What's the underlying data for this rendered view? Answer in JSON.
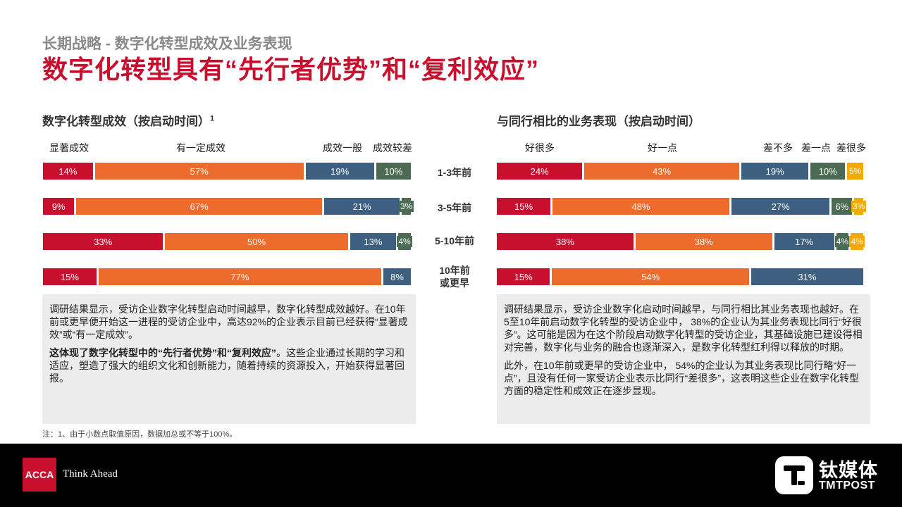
{
  "header": {
    "supertitle": "长期战略 - 数字化转型成效及业务表现",
    "title": "数字化转型具有“先行者优势”和“复利效应”"
  },
  "colors": {
    "red": "#c8102e",
    "orange": "#ec6b2d",
    "blue": "#3d5f80",
    "green": "#4c6b55",
    "yellow": "#f2a900",
    "textbox_bg": "#ececec"
  },
  "row_labels": [
    {
      "text": "1-3年前"
    },
    {
      "text": "3-5年前"
    },
    {
      "text": "5-10年前"
    },
    {
      "text": "10年前\n或更早"
    }
  ],
  "chart_data": [
    {
      "type": "bar",
      "stacked": true,
      "orientation": "horizontal",
      "title": "数字化转型成效（按启动时间）",
      "title_sup": "1",
      "categories": [
        "1-3年前",
        "3-5年前",
        "5-10年前",
        "10年前或更早"
      ],
      "series": [
        {
          "name": "显著成效",
          "color": "#c8102e",
          "values": [
            14,
            9,
            33,
            15
          ]
        },
        {
          "name": "有一定成效",
          "color": "#ec6b2d",
          "values": [
            57,
            67,
            50,
            77
          ]
        },
        {
          "name": "成效一般",
          "color": "#3d5f80",
          "values": [
            19,
            21,
            13,
            8
          ]
        },
        {
          "name": "成效较差",
          "color": "#4c6b55",
          "values": [
            10,
            3,
            4,
            0
          ]
        }
      ],
      "labels": [
        [
          "14%",
          "57%",
          "19%",
          "10%"
        ],
        [
          "9%",
          "67%",
          "21%",
          "3%"
        ],
        [
          "33%",
          "50%",
          "13%",
          "4%"
        ],
        [
          "15%",
          "77%",
          "8%",
          ""
        ]
      ]
    },
    {
      "type": "bar",
      "stacked": true,
      "orientation": "horizontal",
      "title": "与同行相比的业务表现（按启动时间）",
      "categories": [
        "1-3年前",
        "3-5年前",
        "5-10年前",
        "10年前或更早"
      ],
      "series": [
        {
          "name": "好很多",
          "color": "#c8102e",
          "values": [
            24,
            15,
            38,
            15
          ]
        },
        {
          "name": "好一点",
          "color": "#ec6b2d",
          "values": [
            43,
            48,
            38,
            54
          ]
        },
        {
          "name": "差不多",
          "color": "#3d5f80",
          "values": [
            19,
            27,
            17,
            31
          ]
        },
        {
          "name": "差一点",
          "color": "#4c6b55",
          "values": [
            10,
            6,
            4,
            0
          ]
        },
        {
          "name": "差很多",
          "color": "#f2a900",
          "values": [
            5,
            3,
            4,
            0
          ]
        }
      ],
      "labels": [
        [
          "24%",
          "43%",
          "19%",
          "10%",
          "5%"
        ],
        [
          "15%",
          "48%",
          "27%",
          "6%",
          "3%"
        ],
        [
          "38%",
          "38%",
          "17%",
          "4%",
          "4%"
        ],
        [
          "15%",
          "54%",
          "31%",
          "",
          ""
        ]
      ]
    }
  ],
  "left_text": {
    "p1": "调研结果显示，受访企业数字化转型启动时间越早，数字化转型成效越好。在10年前或更早便开始这一进程的受访企业中，高达92%的企业表示目前已经获得“显著成效”或“有一定成效”。",
    "p2_bold": "这体现了数字化转型中的“先行者优势”和“复利效应”",
    "p2_rest": "。这些企业通过长期的学习和适应，塑造了强大的组织文化和创新能力，随着持续的资源投入，开始获得显著回报。"
  },
  "right_text": {
    "p1": "调研结果显示，受访企业数字化启动时间越早，与同行相比其业务表现也越好。在5至10年前启动数字化转型的受访企业中， 38%的企业认为其业务表现比同行“好很多”。这可能是因为在这个阶段启动数字化转型的受访企业，其基础设施已建设得相对完善，数字化与业务的融合也逐渐深入，是数字化转型红利得以释放的时期。",
    "p2": "此外，在10年前或更早的受访企业中， 54%的企业认为其业务表现比同行略“好一点”，且没有任何一家受访企业表示比同行“差很多”，这表明这些企业在数字化转型方面的稳定性和成效正在逐步显现。"
  },
  "footnote": "注：1、由于小数点取值原因，数据加总或不等于100%。",
  "footer": {
    "acca_logo": "ACCA",
    "acca_tagline": "Think Ahead",
    "tmt_cn": "钛媒体",
    "tmt_en": "TMTPOST"
  }
}
